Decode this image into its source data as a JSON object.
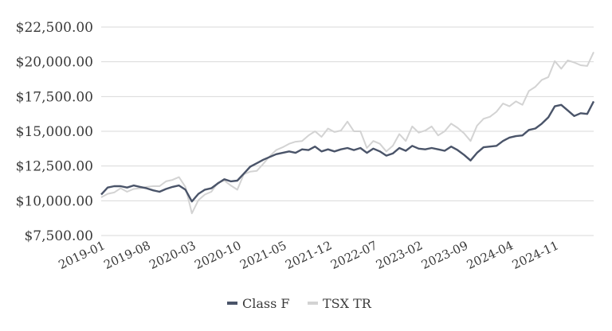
{
  "chart_data": {
    "type": "line",
    "title": "",
    "xlabel": "",
    "ylabel": "",
    "ylim": [
      7500,
      22500
    ],
    "y_ticks": [
      7500,
      10000,
      12500,
      15000,
      17500,
      20000,
      22500
    ],
    "y_tick_labels": [
      "$7,500.00",
      "$10,000.00",
      "$12,500.00",
      "$15,000.00",
      "$17,500.00",
      "$20,000.00",
      "$22,500.00"
    ],
    "x": [
      "2019-01",
      "2019-02",
      "2019-03",
      "2019-04",
      "2019-05",
      "2019-06",
      "2019-07",
      "2019-08",
      "2019-09",
      "2019-10",
      "2019-11",
      "2019-12",
      "2020-01",
      "2020-02",
      "2020-03",
      "2020-04",
      "2020-05",
      "2020-06",
      "2020-07",
      "2020-08",
      "2020-09",
      "2020-10",
      "2020-11",
      "2020-12",
      "2021-01",
      "2021-02",
      "2021-03",
      "2021-04",
      "2021-05",
      "2021-06",
      "2021-07",
      "2021-08",
      "2021-09",
      "2021-10",
      "2021-11",
      "2021-12",
      "2022-01",
      "2022-02",
      "2022-03",
      "2022-04",
      "2022-05",
      "2022-06",
      "2022-07",
      "2022-08",
      "2022-09",
      "2022-10",
      "2022-11",
      "2022-12",
      "2023-01",
      "2023-02",
      "2023-03",
      "2023-04",
      "2023-05",
      "2023-06",
      "2023-07",
      "2023-08",
      "2023-09",
      "2023-10",
      "2023-11",
      "2023-12",
      "2024-01",
      "2024-02",
      "2024-03",
      "2024-04",
      "2024-05",
      "2024-06",
      "2024-07",
      "2024-08",
      "2024-09",
      "2024-10",
      "2024-11",
      "2024-12",
      "2025-01",
      "2025-02",
      "2025-03",
      "2025-04",
      "2025-05"
    ],
    "x_tick_labels": [
      "2019-01",
      "2019-08",
      "2020-03",
      "2020-10",
      "2021-05",
      "2021-12",
      "2022-07",
      "2023-02",
      "2023-09",
      "2024-04",
      "2024-11"
    ],
    "series": [
      {
        "name": "Class F",
        "color": "#4a5469",
        "values": [
          10450,
          10950,
          11050,
          11050,
          10950,
          11100,
          11000,
          10900,
          10750,
          10650,
          10850,
          11000,
          11100,
          10800,
          9950,
          10500,
          10800,
          10900,
          11250,
          11550,
          11400,
          11450,
          11950,
          12450,
          12700,
          12950,
          13150,
          13350,
          13450,
          13550,
          13450,
          13700,
          13650,
          13900,
          13550,
          13700,
          13550,
          13700,
          13800,
          13650,
          13800,
          13450,
          13750,
          13550,
          13250,
          13400,
          13800,
          13600,
          13950,
          13750,
          13700,
          13800,
          13700,
          13600,
          13900,
          13650,
          13300,
          12900,
          13450,
          13850,
          13900,
          13950,
          14300,
          14550,
          14650,
          14700,
          15100,
          15200,
          15550,
          16000,
          16800,
          16900,
          16500,
          16100,
          16300,
          16250,
          17150
        ]
      },
      {
        "name": "TSX TR",
        "color": "#d3d3d3",
        "values": [
          10250,
          10500,
          10600,
          10900,
          10650,
          10850,
          10900,
          11000,
          11050,
          11050,
          11400,
          11500,
          11700,
          11000,
          9100,
          10050,
          10450,
          10650,
          11300,
          11450,
          11100,
          10800,
          11900,
          12100,
          12150,
          12650,
          13200,
          13650,
          13850,
          14100,
          14250,
          14300,
          14700,
          15000,
          14600,
          15200,
          14950,
          15050,
          15700,
          15000,
          15000,
          13800,
          14300,
          14100,
          13550,
          13950,
          14800,
          14300,
          15350,
          14900,
          15050,
          15350,
          14700,
          15000,
          15550,
          15250,
          14850,
          14300,
          15400,
          15900,
          16050,
          16400,
          17000,
          16800,
          17150,
          16900,
          17900,
          18200,
          18700,
          18900,
          20050,
          19500,
          20100,
          19950,
          19750,
          19700,
          20700
        ]
      }
    ],
    "legend_position": "bottom",
    "grid": true
  }
}
